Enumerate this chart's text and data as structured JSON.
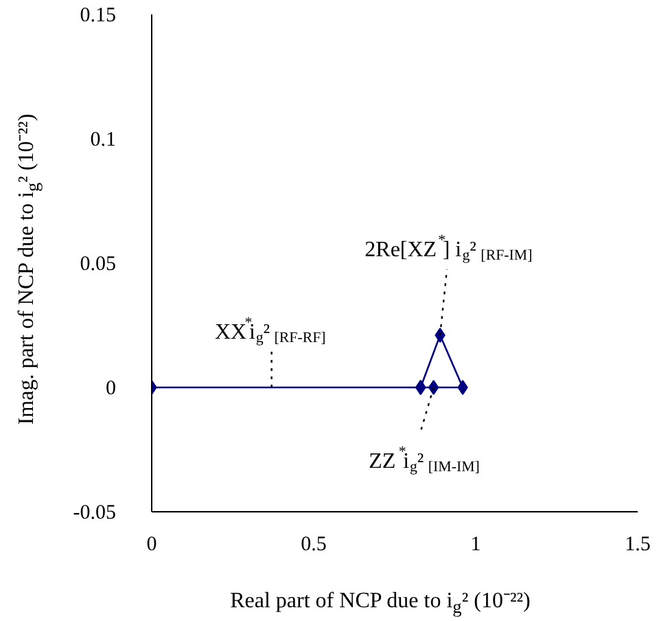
{
  "chart_data": {
    "type": "line",
    "xlabel": "Real part of NCP due to i$_{g}$² (10⁻²²)",
    "ylabel": "Imag. part of NCP due to i$_{g}$² (10⁻²²)",
    "x": [
      0,
      0.83,
      0.87,
      0.96,
      0.89,
      0.83
    ],
    "series": [
      {
        "color": "#000080",
        "values": [
          0,
          0,
          0,
          0,
          0.021,
          0
        ]
      }
    ],
    "marker": "diamond",
    "line_style": "solid",
    "xlim": [
      0,
      1.5
    ],
    "ylim": [
      -0.05,
      0.15
    ],
    "xticks": [
      0,
      0.5,
      1,
      1.5
    ],
    "yticks": [
      -0.05,
      0,
      0.05,
      0.1,
      0.15
    ],
    "grid": false,
    "annotations": [
      {
        "text": "XX$^{*}$i$_{g}$²$_{[RF-RF]}$",
        "x": 0.37,
        "y": 0
      },
      {
        "text": "2Re[XZ$^{*}$] i$_{g}$²$_{[RF-IM]}$",
        "x": 0.89,
        "y": 0.021
      },
      {
        "text": "ZZ$^{*}$i$_{g}$²$_{[IM-IM]}$",
        "x": 0.87,
        "y": 0
      }
    ]
  }
}
